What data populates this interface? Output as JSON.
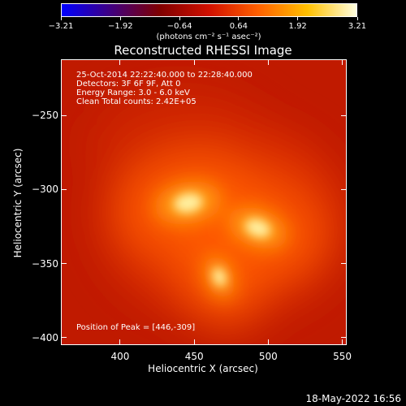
{
  "chart_data": {
    "type": "heatmap",
    "title": "Reconstructed RHESSI Image",
    "xlabel": "Heliocentric X (arcsec)",
    "ylabel": "Heliocentric Y (arcsec)",
    "xlim": [
      360,
      553
    ],
    "ylim": [
      -405,
      -212
    ],
    "xticks": [
      "400",
      "450",
      "500",
      "550"
    ],
    "xtick_values": [
      400,
      450,
      500,
      550
    ],
    "yticks": [
      "-250",
      "-300",
      "-350",
      "-400"
    ],
    "ytick_values": [
      -250,
      -300,
      -350,
      -400
    ],
    "colorbar": {
      "ticks": [
        "-3.21",
        "-1.92",
        "-0.64",
        "0.64",
        "1.92",
        "3.21"
      ],
      "tick_values": [
        -3.21,
        -1.92,
        -0.64,
        0.64,
        1.92,
        3.21
      ],
      "units": "(photons cm⁻² s⁻¹ asec⁻²)",
      "colormap_stops": [
        "#0000ff",
        "#400080",
        "#800000",
        "#d01000",
        "#ff6000",
        "#ffc000",
        "#ffffe0"
      ]
    },
    "sources": [
      {
        "x": 446,
        "y": -309,
        "peak": 3.21
      },
      {
        "x": 493,
        "y": -326,
        "peak": 2.9
      },
      {
        "x": 467,
        "y": -359,
        "peak": 2.1
      }
    ],
    "annotations": [
      "25-Oct-2014 22:22:40.000 to 22:28:40.000",
      "Detectors: 3F 6F 9F, Att 0",
      "Energy Range: 3.0 - 6.0 keV",
      "Clean    Total counts: 2.42E+05"
    ],
    "peak_label": "Position of Peak = [446,-309]"
  },
  "footer": "18-May-2022 16:56"
}
